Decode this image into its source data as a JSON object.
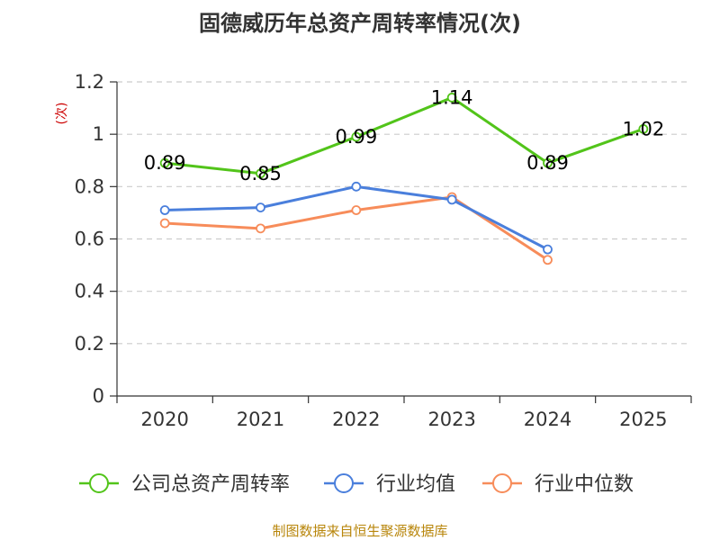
{
  "chart_data": {
    "type": "line",
    "title": "固德威历年总资产周转率情况(次)",
    "ylabel": "(次)",
    "categories": [
      "2020",
      "2021",
      "2022",
      "2023",
      "2024",
      "2025"
    ],
    "ylim": [
      0,
      1.2
    ],
    "yticks": [
      "0",
      "0.2",
      "0.4",
      "0.6",
      "0.8",
      "1",
      "1.2"
    ],
    "yticks_values": [
      0,
      0.2,
      0.4,
      0.6,
      0.8,
      1.0,
      1.2
    ],
    "grid": true,
    "legend_position": "bottom",
    "series": [
      {
        "name": "公司总资产周转率",
        "color": "#52c41a",
        "values": [
          0.89,
          0.85,
          0.99,
          1.14,
          0.89,
          1.02
        ],
        "labels": [
          "0.89",
          "0.85",
          "0.99",
          "1.14",
          "0.89",
          "1.02"
        ]
      },
      {
        "name": "行业均值",
        "color": "#4a7fdc",
        "values": [
          0.71,
          0.72,
          0.8,
          0.75,
          0.56,
          null
        ]
      },
      {
        "name": "行业中位数",
        "color": "#f78c5a",
        "values": [
          0.66,
          0.64,
          0.71,
          0.76,
          0.52,
          null
        ]
      }
    ]
  },
  "source": "制图数据来自恒生聚源数据库"
}
